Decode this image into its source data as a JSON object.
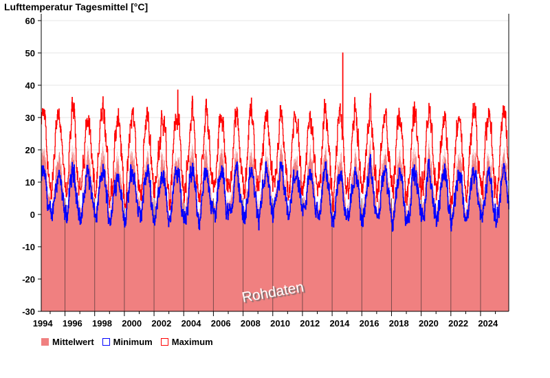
{
  "chart_data": {
    "type": "line",
    "title": "Lufttemperatur Tagesmittel [°C]",
    "xlabel": "",
    "ylabel": "",
    "ylim": [
      -30,
      60
    ],
    "xlim": [
      1994.4,
      2025.9
    ],
    "y_ticks": [
      "60",
      "50",
      "40",
      "30",
      "20",
      "10",
      "0",
      "-10",
      "-20",
      "-30"
    ],
    "x_ticks": [
      "1994",
      "1996",
      "1998",
      "2000",
      "2002",
      "2004",
      "2006",
      "2008",
      "2010",
      "2012",
      "2014",
      "2016",
      "2018",
      "2020",
      "2022",
      "2024"
    ],
    "grid": true,
    "legend_position": "bottom-left",
    "series": [
      {
        "name": "Mittelwert",
        "style": "area",
        "color": "#f08080",
        "seasonal_mean": 10,
        "seasonal_amplitude": 8.5,
        "typical_range": [
          0,
          25
        ]
      },
      {
        "name": "Minimum",
        "style": "line",
        "color": "#0000ff",
        "seasonal_mean": 6,
        "seasonal_amplitude": 7,
        "typical_range": [
          -3,
          18
        ]
      },
      {
        "name": "Maximum",
        "style": "line",
        "color": "#ff0000",
        "seasonal_mean": 19,
        "seasonal_amplitude": 12,
        "typical_range": [
          5,
          38
        ]
      }
    ],
    "annotations": [
      {
        "series": "Maximum",
        "x": 2014.7,
        "y": 50,
        "note": "spike"
      },
      {
        "series": "Maximum",
        "x": 2003.6,
        "y": 38.5,
        "note": "summer peak"
      }
    ],
    "watermark": "Rohdaten"
  },
  "legend": {
    "mean": "Mittelwert",
    "min": "Minimum",
    "max": "Maximum"
  }
}
